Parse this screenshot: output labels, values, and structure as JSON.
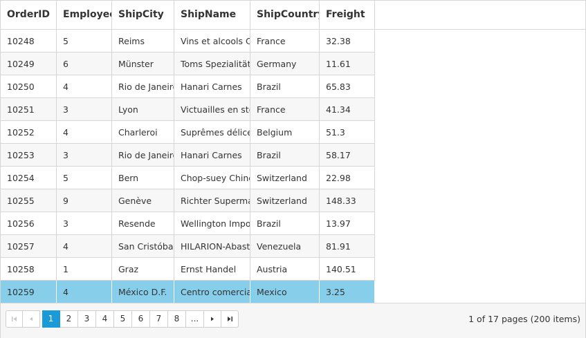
{
  "grid": {
    "columns": [
      "OrderID",
      "EmployeeID",
      "ShipCity",
      "ShipName",
      "ShipCountry",
      "Freight"
    ],
    "rows": [
      [
        "10248",
        "5",
        "Reims",
        "Vins et alcools Chevalier",
        "France",
        "32.38"
      ],
      [
        "10249",
        "6",
        "Münster",
        "Toms Spezialitäten",
        "Germany",
        "11.61"
      ],
      [
        "10250",
        "4",
        "Rio de Janeiro",
        "Hanari Carnes",
        "Brazil",
        "65.83"
      ],
      [
        "10251",
        "3",
        "Lyon",
        "Victuailles en stock",
        "France",
        "41.34"
      ],
      [
        "10252",
        "4",
        "Charleroi",
        "Suprêmes délices",
        "Belgium",
        "51.3"
      ],
      [
        "10253",
        "3",
        "Rio de Janeiro",
        "Hanari Carnes",
        "Brazil",
        "58.17"
      ],
      [
        "10254",
        "5",
        "Bern",
        "Chop-suey Chinese",
        "Switzerland",
        "22.98"
      ],
      [
        "10255",
        "9",
        "Genève",
        "Richter Supermarkt",
        "Switzerland",
        "148.33"
      ],
      [
        "10256",
        "3",
        "Resende",
        "Wellington Importadora",
        "Brazil",
        "13.97"
      ],
      [
        "10257",
        "4",
        "San Cristóbal",
        "HILARION-Abastos",
        "Venezuela",
        "81.91"
      ],
      [
        "10258",
        "1",
        "Graz",
        "Ernst Handel",
        "Austria",
        "140.51"
      ],
      [
        "10259",
        "4",
        "México D.F.",
        "Centro comercial Moctezuma",
        "Mexico",
        "3.25"
      ]
    ],
    "selected_row_index": 11
  },
  "pager": {
    "pages": [
      "1",
      "2",
      "3",
      "4",
      "5",
      "6",
      "7",
      "8",
      "..."
    ],
    "current_page": "1",
    "info": "1 of 17 pages (200 items)"
  },
  "icons": {
    "first": "first-page-icon",
    "prev": "prev-page-icon",
    "next": "next-page-icon",
    "last": "last-page-icon"
  },
  "colors": {
    "selected_row": "#87ceeb",
    "current_page": "#1a9bd7",
    "border": "#d6d6d6"
  }
}
